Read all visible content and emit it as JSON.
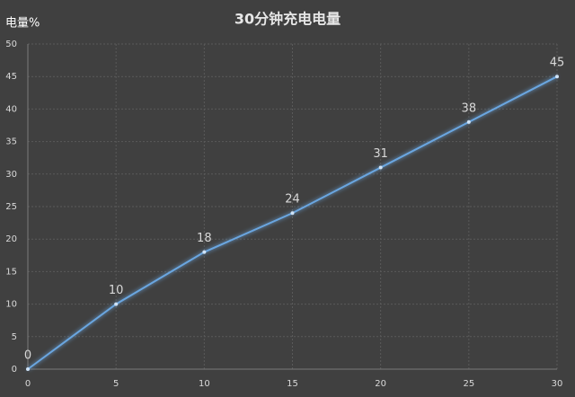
{
  "chart_data": {
    "type": "line",
    "title": "30分钟充电电量",
    "y_label": "电量%",
    "x": [
      0,
      5,
      10,
      15,
      20,
      25,
      30
    ],
    "series": [
      {
        "name": "电量",
        "color": "#6aa6e0",
        "values": [
          0,
          10,
          18,
          24,
          31,
          38,
          45
        ]
      }
    ],
    "xlim": [
      0,
      30
    ],
    "xticks": [
      0,
      5,
      10,
      15,
      20,
      25,
      30
    ],
    "ylim": [
      0,
      50
    ],
    "yticks": [
      0,
      5,
      10,
      15,
      20,
      25,
      30,
      35,
      40,
      45,
      50
    ],
    "grid": true,
    "data_labels": true
  }
}
